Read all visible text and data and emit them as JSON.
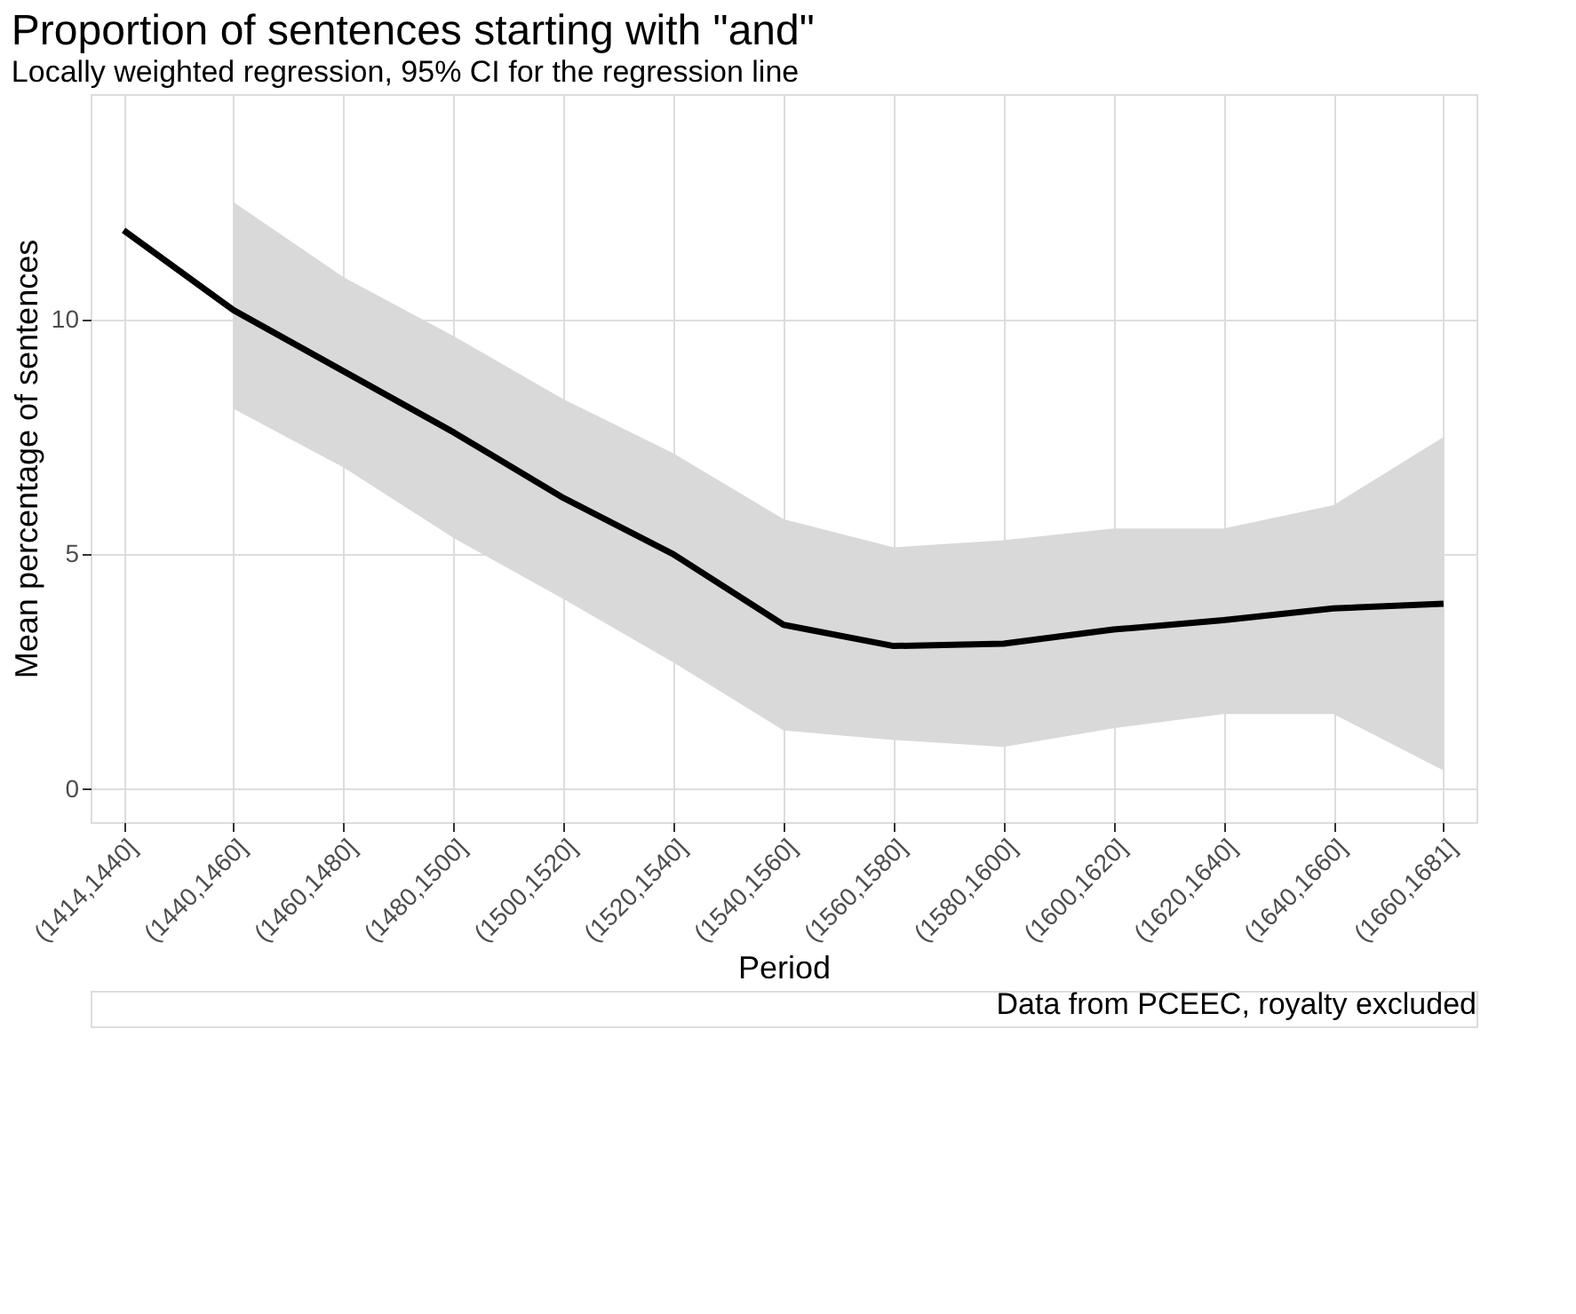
{
  "chart_data": {
    "type": "line",
    "title": "Proportion of sentences starting with \"and\"",
    "subtitle": "Locally weighted regression, 95% CI for the regression line",
    "xlabel": "Period",
    "ylabel": "Mean percentage of sentences",
    "categories": [
      "(1414,1440]",
      "(1440,1460]",
      "(1460,1480]",
      "(1480,1500]",
      "(1500,1520]",
      "(1520,1540]",
      "(1540,1560]",
      "(1560,1580]",
      "(1580,1600]",
      "(1600,1620]",
      "(1620,1640]",
      "(1640,1660]",
      "(1660,1681]"
    ],
    "series": [
      {
        "color": "#000000",
        "values": [
          11.9,
          10.2,
          8.9,
          7.6,
          6.2,
          5.0,
          3.5,
          3.05,
          3.1,
          3.4,
          3.6,
          3.85,
          3.95
        ],
        "lower": [
          null,
          8.1,
          6.85,
          5.35,
          4.05,
          2.7,
          1.25,
          1.05,
          0.9,
          1.3,
          1.6,
          1.6,
          0.4
        ],
        "upper": [
          null,
          12.5,
          10.9,
          9.65,
          8.3,
          7.15,
          5.75,
          5.15,
          5.3,
          5.55,
          5.55,
          6.05,
          7.5
        ]
      }
    ],
    "ylim": [
      -0.7,
      14.8
    ],
    "yticks": [
      0,
      5,
      10
    ],
    "grid": true,
    "legend": false,
    "marker": "none",
    "line_style": "solid",
    "annotations": [
      "Data from PCEEC, royalty excluded"
    ]
  }
}
